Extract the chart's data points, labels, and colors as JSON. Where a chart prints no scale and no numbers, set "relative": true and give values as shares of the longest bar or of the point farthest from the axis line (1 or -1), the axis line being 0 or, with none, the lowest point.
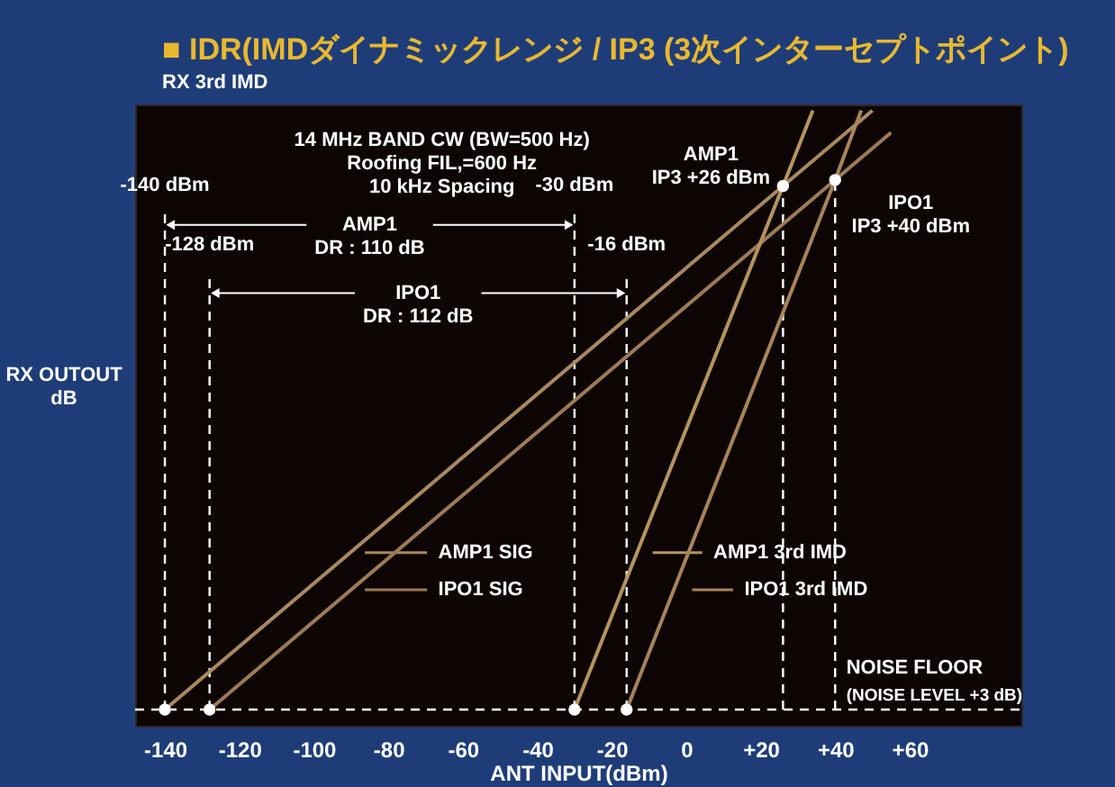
{
  "chart_data": {
    "type": "line",
    "title": "■ IDR(IMDダイナミックレンジ / IP3 (3次インターセプトポイント)",
    "subtitle": "RX 3rd IMD",
    "xlabel": "ANT INPUT(dBm)",
    "ylabel": "RX OUTOUT\ndB",
    "relative": true,
    "legend": "bottom",
    "xlim": [
      -148,
      90
    ],
    "xticks": [
      -140,
      -120,
      -100,
      -80,
      -60,
      -40,
      -20,
      0,
      {
        "value": 20,
        "label": "+20"
      },
      {
        "value": 40,
        "label": "+40"
      },
      {
        "value": 60,
        "label": "+60"
      }
    ],
    "series": [
      {
        "name": "AMP1 SIG",
        "color": "#a8895f",
        "x": [
          -140,
          26,
          50
        ],
        "values": [
          0,
          0.874,
          1
        ]
      },
      {
        "name": "IPO1 SIG",
        "color": "#9c7b55",
        "x": [
          -128,
          40,
          55
        ],
        "values": [
          0,
          0.884,
          0.963
        ]
      },
      {
        "name": "AMP1 3rd IMD",
        "color": "#b4945f",
        "x": [
          -30,
          26,
          34
        ],
        "values": [
          0,
          0.874,
          1
        ]
      },
      {
        "name": "IPO1 3rd IMD",
        "color": "#a8845a",
        "x": [
          -16,
          40,
          47
        ],
        "values": [
          0,
          0.884,
          1
        ]
      },
      {
        "type": "scatter",
        "marker": "circle",
        "color": "#ffffff",
        "x": [
          -140,
          -128,
          -30,
          -16,
          26,
          40
        ],
        "values": [
          0,
          0,
          0,
          0,
          0.874,
          0.884
        ]
      }
    ],
    "ref_lines": [
      {
        "axis": "x",
        "value": -140,
        "label": "-140 dBm",
        "color": "#ffffff",
        "line_style": "dashed"
      },
      {
        "axis": "x",
        "value": -128,
        "label": "-128 dBm",
        "color": "#ffffff",
        "line_style": "dashed"
      },
      {
        "axis": "x",
        "value": -30,
        "label": "-30 dBm",
        "color": "#ffffff",
        "line_style": "dashed"
      },
      {
        "axis": "x",
        "value": -16,
        "label": "-16 dBm",
        "color": "#ffffff",
        "line_style": "dashed"
      },
      {
        "axis": "x",
        "value": 26,
        "label": "AMP1\nIP3 +26 dBm",
        "color": "#ffffff",
        "line_style": "dashed"
      },
      {
        "axis": "x",
        "value": 40,
        "label": "IPO1\nIP3 +40 dBm",
        "color": "#ffffff",
        "line_style": "dashed"
      }
    ],
    "annotations": [
      "14 MHz BAND CW (BW=500 Hz)\nRoofing FIL,=600 Hz\n10 kHz Spacing",
      "AMP1\nDR : 110 dB",
      "IPO1\nDR : 112 dB",
      "NOISE FLOOR",
      "(NOISE LEVEL +3 dB)"
    ]
  }
}
